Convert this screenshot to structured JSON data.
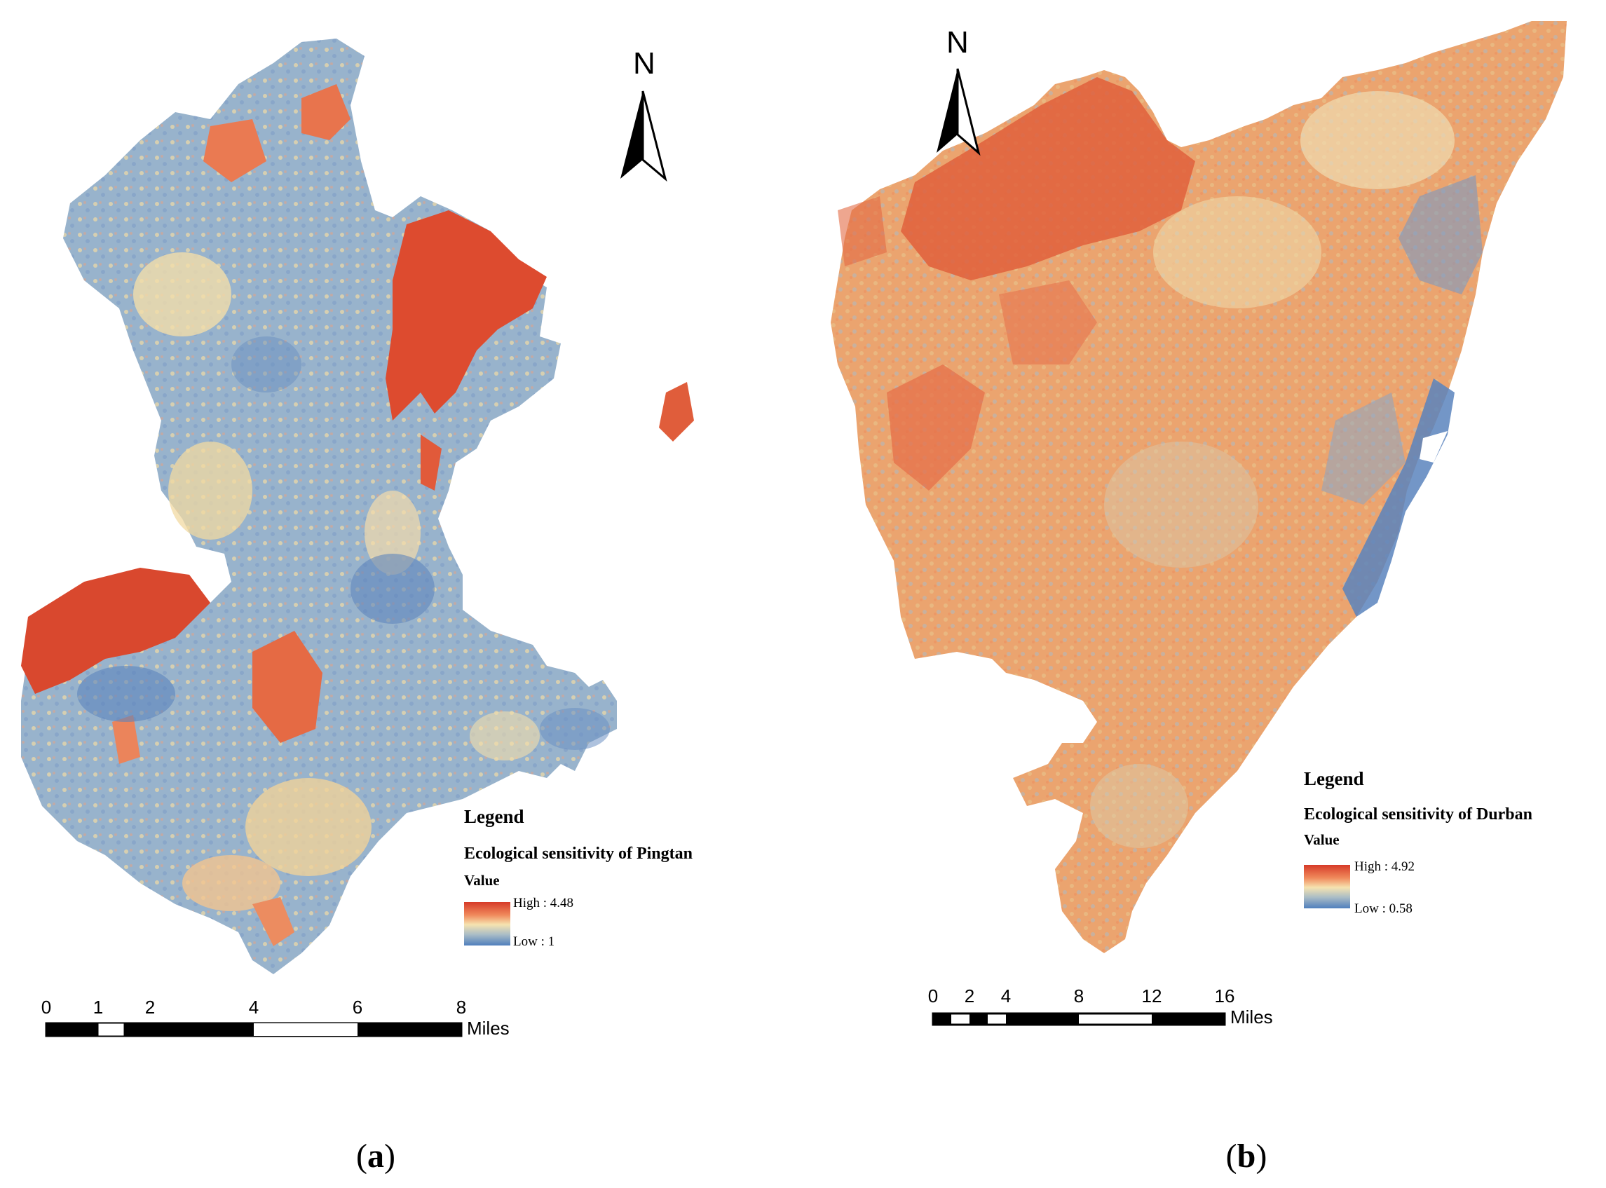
{
  "panels": {
    "a": {
      "legend_title": "Legend",
      "layer_name": "Ecological sensitivity of Pingtan",
      "value_label": "Value",
      "high_label": "High : 4.48",
      "low_label": "Low : 1",
      "north_label": "N",
      "scale_ticks": [
        "0",
        "1",
        "2",
        "4",
        "6",
        "8"
      ],
      "scale_unit": "Miles",
      "caption_letter": "a"
    },
    "b": {
      "legend_title": "Legend",
      "layer_name": "Ecological sensitivity of Durban",
      "value_label": "Value",
      "high_label": "High : 4.92",
      "low_label": "Low : 0.58",
      "north_label": "N",
      "scale_ticks": [
        "0",
        "2",
        "4",
        "8",
        "12",
        "16"
      ],
      "scale_unit": "Miles",
      "caption_letter": "b"
    }
  },
  "colors": {
    "high": "#d63a28",
    "mid_high": "#f08a5c",
    "mid": "#f6e3b0",
    "mid_low": "#a9bcc6",
    "low": "#4f7fbd"
  }
}
